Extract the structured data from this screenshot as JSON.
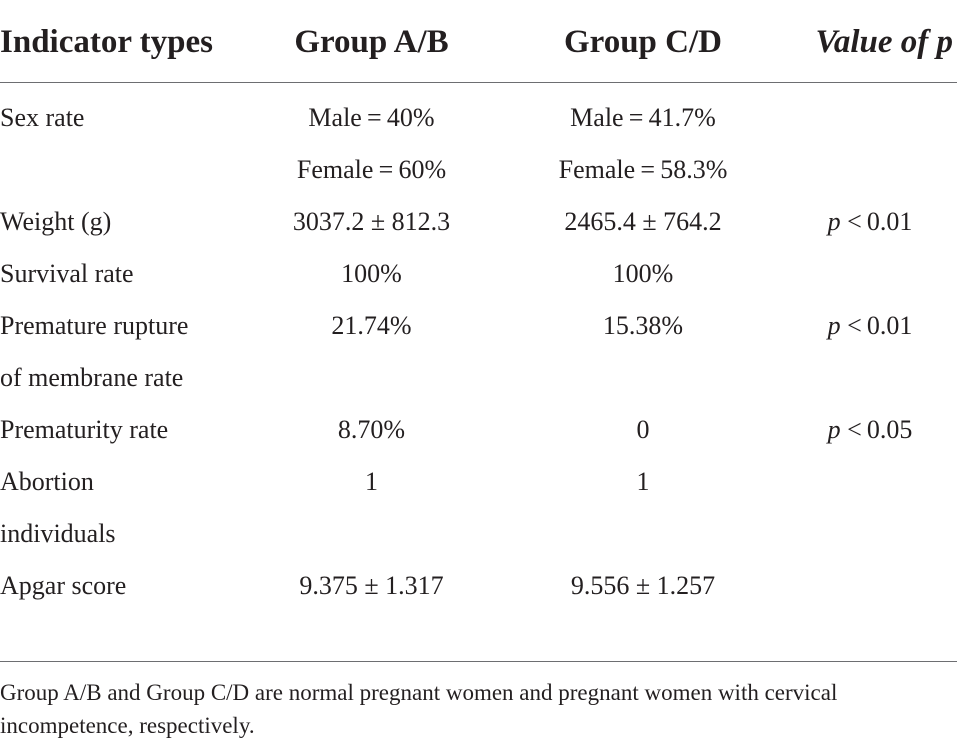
{
  "header": {
    "col1": "Indicator types",
    "col2": "Group A/B",
    "col3": "Group C/D",
    "col4": "Value of p"
  },
  "rows": [
    {
      "label": "Sex rate",
      "a": "Male = 40%",
      "b": "Male = 41.7%",
      "p_prefix": "",
      "p_rest": ""
    },
    {
      "label": "",
      "a": "Female = 60%",
      "b": "Female = 58.3%",
      "p_prefix": "",
      "p_rest": ""
    },
    {
      "label": "Weight (g)",
      "a": "3037.2 ± 812.3",
      "b": "2465.4 ± 764.2",
      "p_prefix": "p",
      "p_rest": " < 0.01"
    },
    {
      "label": "Survival rate",
      "a": "100%",
      "b": "100%",
      "p_prefix": "",
      "p_rest": ""
    },
    {
      "label": "Premature rupture",
      "a": "21.74%",
      "b": "15.38%",
      "p_prefix": "p",
      "p_rest": " < 0.01"
    },
    {
      "label": "of membrane rate",
      "a": "",
      "b": "",
      "p_prefix": "",
      "p_rest": ""
    },
    {
      "label": "Prematurity rate",
      "a": "8.70%",
      "b": "0",
      "p_prefix": "p",
      "p_rest": " < 0.05"
    },
    {
      "label": "Abortion",
      "a": "1",
      "b": "1",
      "p_prefix": "",
      "p_rest": ""
    },
    {
      "label": "individuals",
      "a": "",
      "b": "",
      "p_prefix": "",
      "p_rest": ""
    },
    {
      "label": "Apgar score",
      "a": "9.375 ± 1.317",
      "b": "9.556 ± 1.257",
      "p_prefix": "",
      "p_rest": ""
    }
  ],
  "footnote": "Group A/B and Group C/D are normal pregnant women and pregnant women with cervical incompetence, respectively."
}
